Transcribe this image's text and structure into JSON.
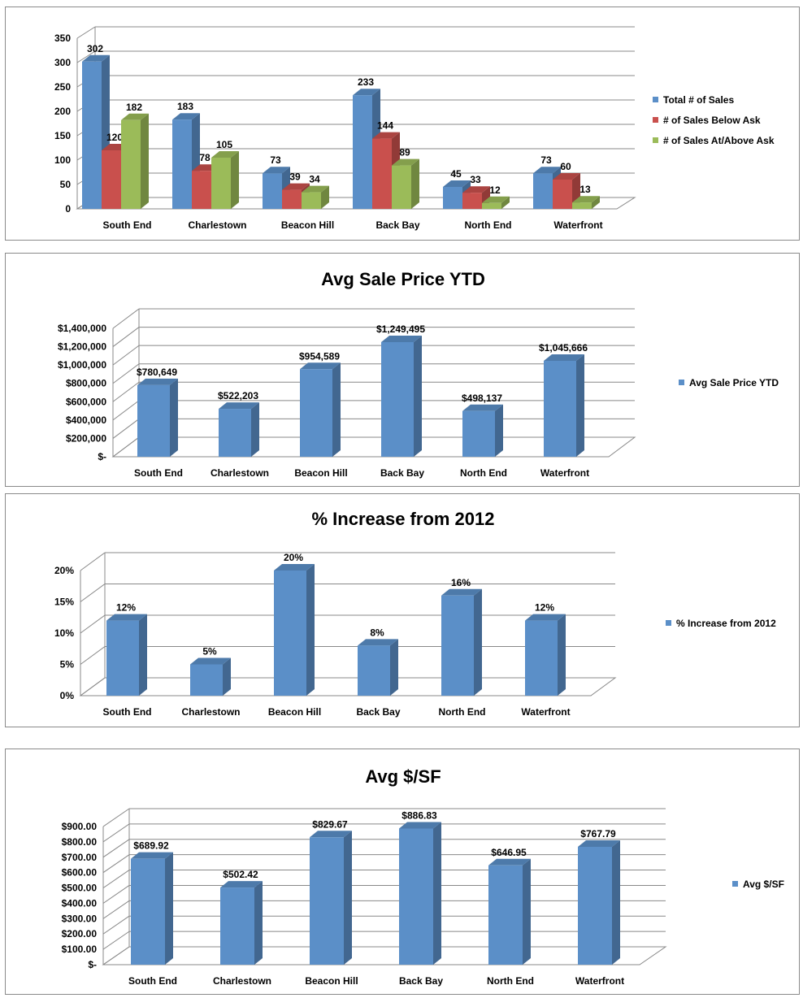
{
  "chart_data": [
    {
      "type": "bar",
      "style": "3d-clustered-column",
      "title": "",
      "categories": [
        "South End",
        "Charlestown",
        "Beacon Hill",
        "Back Bay",
        "North End",
        "Waterfront"
      ],
      "series": [
        {
          "name": "Total # of Sales",
          "values": [
            302,
            183,
            73,
            233,
            45,
            73
          ],
          "labels": [
            "302",
            "183",
            "73",
            "233",
            "45",
            "73"
          ],
          "color": "#5B8FC8"
        },
        {
          "name": "# of Sales Below Ask",
          "values": [
            120,
            78,
            39,
            144,
            33,
            60
          ],
          "labels": [
            "120",
            "78",
            "39",
            "144",
            "33",
            "60"
          ],
          "color": "#C9504D"
        },
        {
          "name": "# of Sales At/Above Ask",
          "values": [
            182,
            105,
            34,
            89,
            12,
            13
          ],
          "labels": [
            "182",
            "105",
            "34",
            "89",
            "12",
            "13"
          ],
          "color": "#9BBB59"
        }
      ],
      "ylim": [
        0,
        350
      ],
      "yticks": [
        "0",
        "50",
        "100",
        "150",
        "200",
        "250",
        "300",
        "350"
      ],
      "grid": true,
      "legend": "right"
    },
    {
      "type": "bar",
      "style": "3d-column",
      "title": "Avg Sale Price YTD",
      "categories": [
        "South End",
        "Charlestown",
        "Beacon Hill",
        "Back Bay",
        "North End",
        "Waterfront"
      ],
      "series": [
        {
          "name": "Avg Sale Price YTD",
          "values": [
            780649,
            522203,
            954589,
            1249495,
            498137,
            1045666
          ],
          "labels": [
            "$780,649",
            "$522,203",
            "$954,589",
            "$1,249,495",
            "$498,137",
            "$1,045,666"
          ],
          "color": "#5B8FC8"
        }
      ],
      "ylim": [
        0,
        1400000
      ],
      "yticks": [
        "$-",
        "$200,000",
        "$400,000",
        "$600,000",
        "$800,000",
        "$1,000,000",
        "$1,200,000",
        "$1,400,000"
      ],
      "grid": true,
      "legend": "right"
    },
    {
      "type": "bar",
      "style": "3d-column",
      "title": "% Increase from 2012",
      "categories": [
        "South End",
        "Charlestown",
        "Beacon Hill",
        "Back Bay",
        "North End",
        "Waterfront"
      ],
      "series": [
        {
          "name": "% Increase from 2012",
          "values": [
            12,
            5,
            20,
            8,
            16,
            12
          ],
          "labels": [
            "12%",
            "5%",
            "20%",
            "8%",
            "16%",
            "12%"
          ],
          "color": "#5B8FC8"
        }
      ],
      "ylim": [
        0,
        20
      ],
      "yticks": [
        "0%",
        "5%",
        "10%",
        "15%",
        "20%"
      ],
      "grid": true,
      "legend": "right"
    },
    {
      "type": "bar",
      "style": "3d-column",
      "title": "Avg $/SF",
      "categories": [
        "South End",
        "Charlestown",
        "Beacon Hill",
        "Back Bay",
        "North End",
        "Waterfront"
      ],
      "series": [
        {
          "name": "Avg $/SF",
          "values": [
            689.92,
            502.42,
            829.67,
            886.83,
            646.95,
            767.79
          ],
          "labels": [
            "$689.92",
            "$502.42",
            "$829.67",
            "$886.83",
            "$646.95",
            "$767.79"
          ],
          "color": "#5B8FC8"
        }
      ],
      "ylim": [
        0,
        900
      ],
      "yticks": [
        "$-",
        "$100.00",
        "$200.00",
        "$300.00",
        "$400.00",
        "$500.00",
        "$600.00",
        "$700.00",
        "$800.00",
        "$900.00"
      ],
      "grid": true,
      "legend": "right"
    }
  ]
}
